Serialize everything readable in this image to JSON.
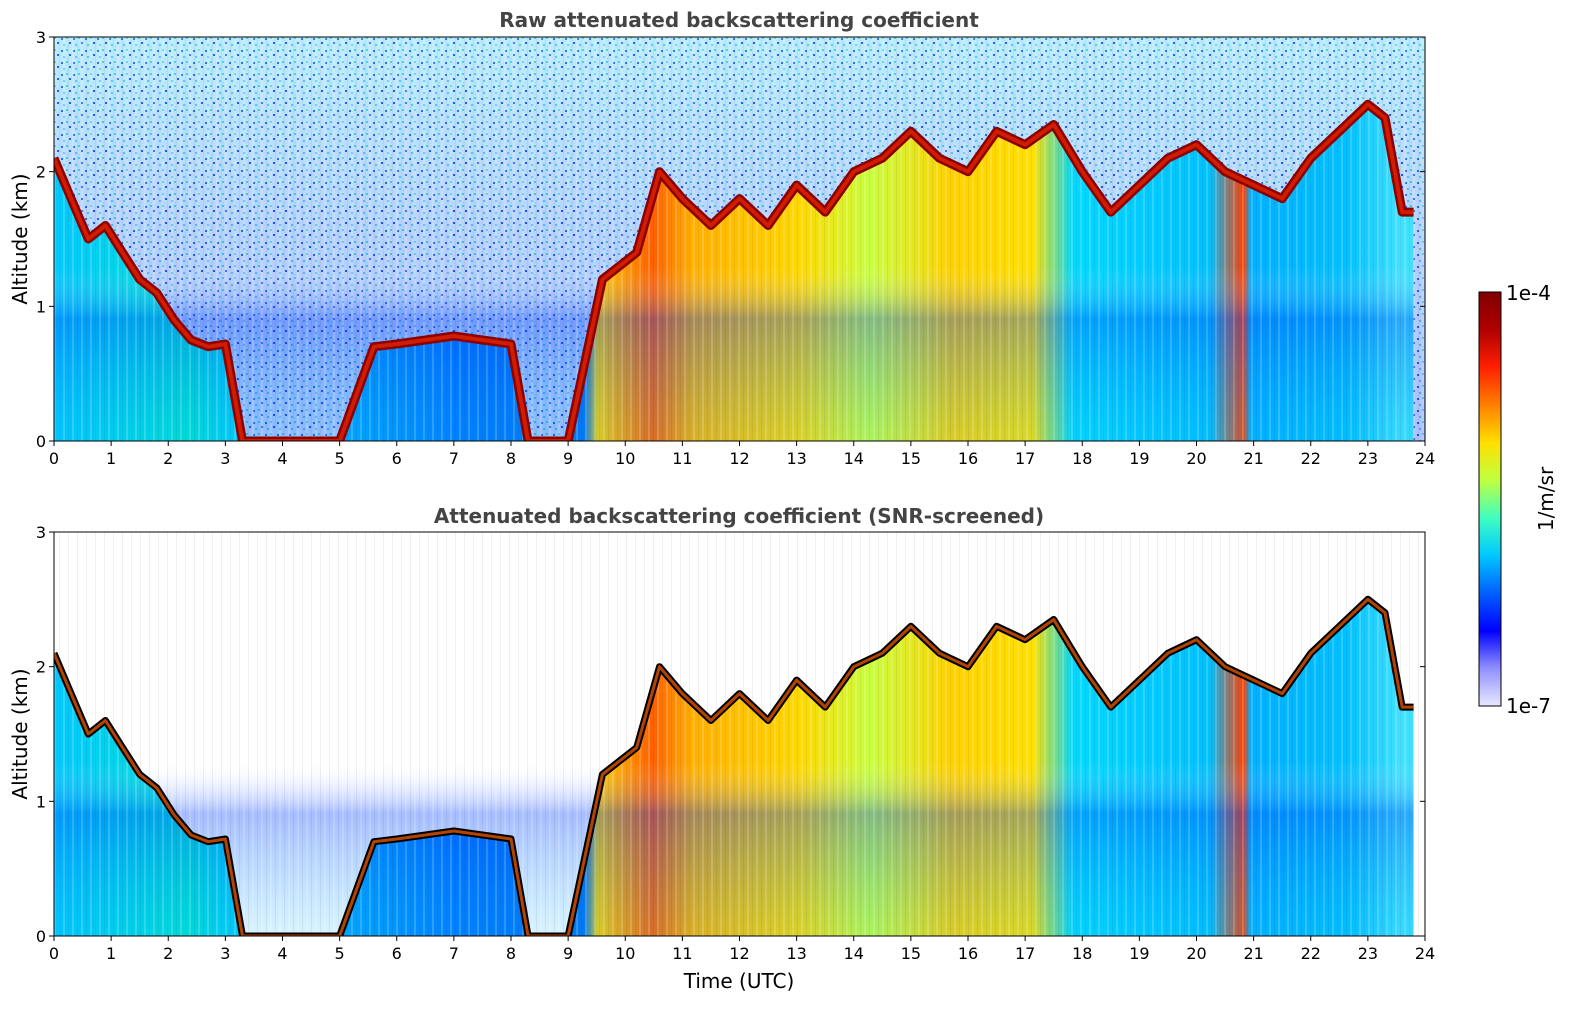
{
  "chart_data": [
    {
      "type": "heatmap",
      "title": "Raw attenuated backscattering coefficient",
      "xlabel": "",
      "ylabel": "Altitude (km)",
      "xlim": [
        0,
        24
      ],
      "ylim": [
        0,
        3
      ],
      "x_ticks": [
        "0",
        "1",
        "2",
        "3",
        "4",
        "5",
        "6",
        "7",
        "8",
        "9",
        "10",
        "11",
        "12",
        "13",
        "14",
        "15",
        "16",
        "17",
        "18",
        "19",
        "20",
        "21",
        "22",
        "23",
        "24"
      ],
      "y_ticks": [
        "0",
        "1",
        "2",
        "3"
      ],
      "colorscale": "jet",
      "value_range": [
        "1e-7",
        "1e-4"
      ],
      "cloud_base_profile": {
        "time": [
          0,
          0.3,
          0.6,
          0.9,
          1.2,
          1.5,
          1.8,
          2.1,
          2.4,
          2.7,
          3.0,
          3.3,
          3.6,
          4.0,
          5.0,
          5.6,
          6.0,
          6.5,
          7.0,
          7.5,
          8.0,
          8.3,
          9.0,
          9.6,
          10.2,
          10.6,
          11.0,
          11.5,
          12.0,
          12.5,
          13.0,
          13.5,
          14.0,
          14.5,
          15.0,
          15.5,
          16.0,
          16.5,
          17.0,
          17.5,
          18.0,
          18.5,
          19.0,
          19.5,
          20.0,
          20.5,
          21.0,
          21.5,
          22.0,
          22.5,
          23.0,
          23.3,
          23.6,
          23.8
        ],
        "altitude_km": [
          2.1,
          1.8,
          1.5,
          1.6,
          1.4,
          1.2,
          1.1,
          0.9,
          0.75,
          0.7,
          0.72,
          0.0,
          0.0,
          0.0,
          0.0,
          0.7,
          0.72,
          0.75,
          0.78,
          0.75,
          0.72,
          0.0,
          0.0,
          1.2,
          1.4,
          2.0,
          1.8,
          1.6,
          1.8,
          1.6,
          1.9,
          1.7,
          2.0,
          2.1,
          2.3,
          2.1,
          2.0,
          2.3,
          2.2,
          2.35,
          2.0,
          1.7,
          1.9,
          2.1,
          2.2,
          2.0,
          1.9,
          1.8,
          2.1,
          2.3,
          2.5,
          2.4,
          1.7,
          1.7
        ]
      }
    },
    {
      "type": "heatmap",
      "title": "Attenuated backscattering coefficient (SNR-screened)",
      "xlabel": "Time (UTC)",
      "ylabel": "Altitude (km)",
      "xlim": [
        0,
        24
      ],
      "ylim": [
        0,
        3
      ],
      "x_ticks": [
        "0",
        "1",
        "2",
        "3",
        "4",
        "5",
        "6",
        "7",
        "8",
        "9",
        "10",
        "11",
        "12",
        "13",
        "14",
        "15",
        "16",
        "17",
        "18",
        "19",
        "20",
        "21",
        "22",
        "23",
        "24"
      ],
      "y_ticks": [
        "0",
        "1",
        "2",
        "3"
      ],
      "colorscale": "jet",
      "value_range": [
        "1e-7",
        "1e-4"
      ],
      "screened": true
    }
  ],
  "colorbar": {
    "max_label": "1e-4",
    "min_label": "1e-7",
    "unit_label": "1/m/sr",
    "stops": [
      "#e8e8ff",
      "#9090ff",
      "#0000ff",
      "#0060ff",
      "#00c8ff",
      "#40ffc0",
      "#c0ff40",
      "#ffe000",
      "#ff8000",
      "#ff2000",
      "#b00000",
      "#800000"
    ]
  },
  "colors": {
    "cloud_layer": "#8b0000",
    "screened_edge": "#000000",
    "title_text": "#444444"
  }
}
